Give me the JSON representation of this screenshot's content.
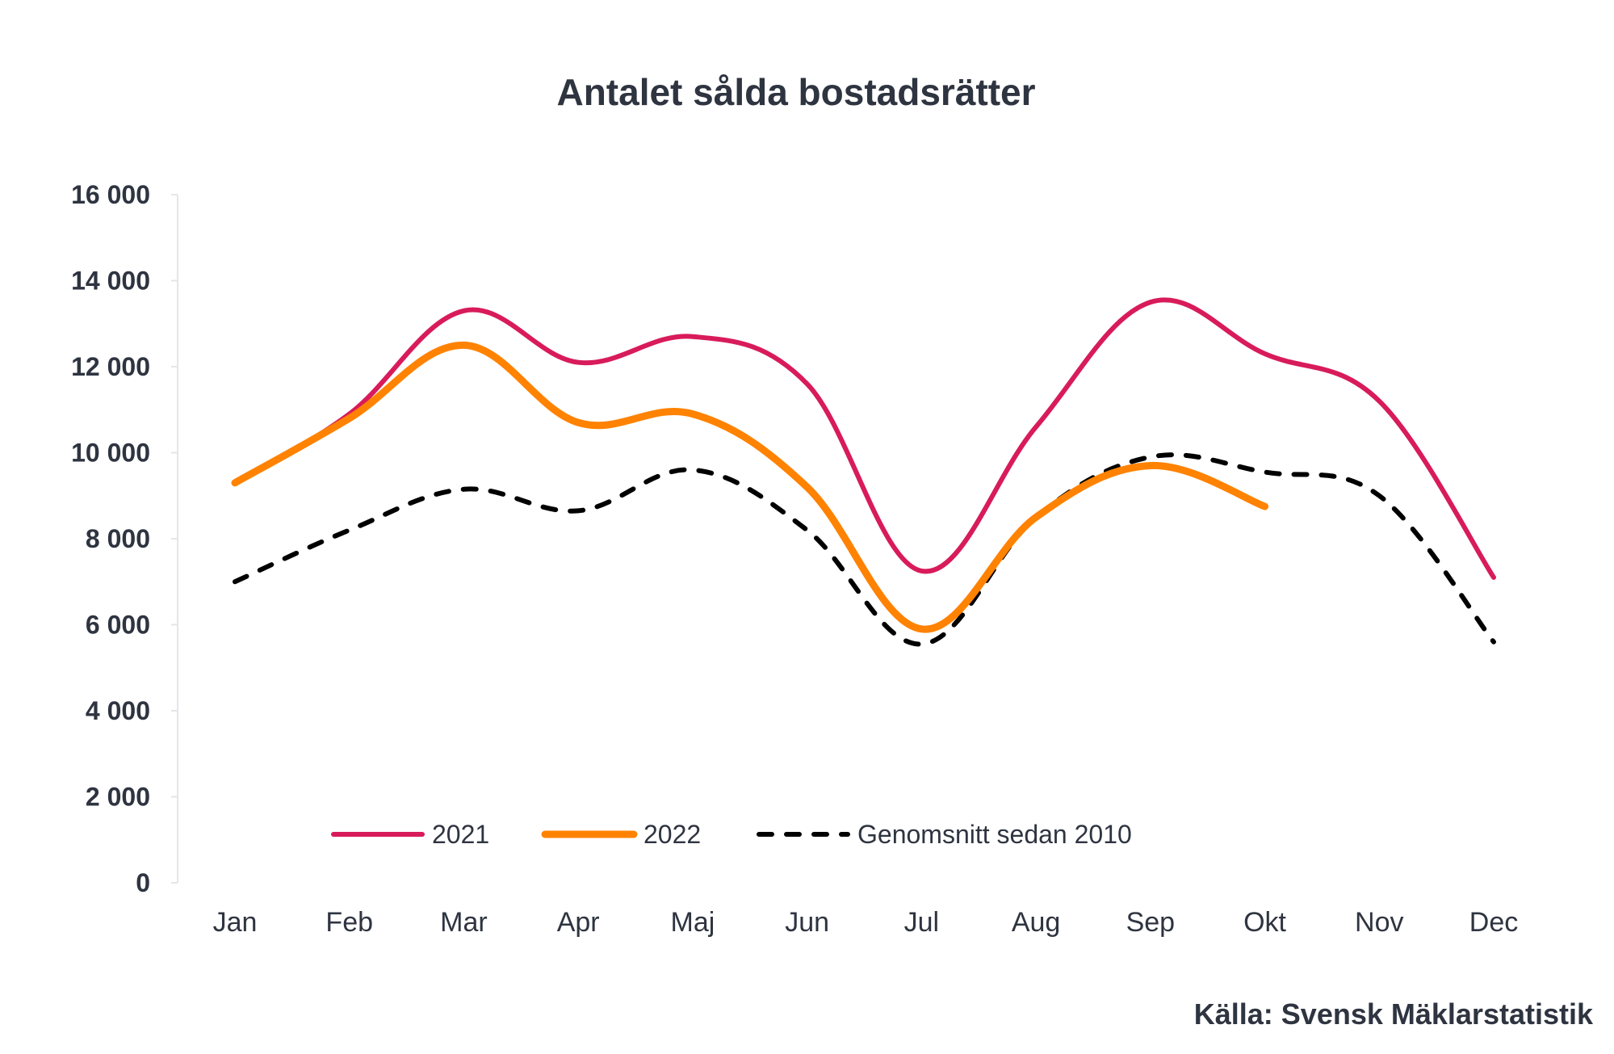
{
  "chart_data": {
    "type": "line",
    "title": "Antalet sålda bostadsrätter",
    "source": "Källa: Svensk Mäklarstatistik",
    "xlabel": "",
    "ylabel": "",
    "categories": [
      "Jan",
      "Feb",
      "Mar",
      "Apr",
      "Maj",
      "Jun",
      "Jul",
      "Aug",
      "Sep",
      "Okt",
      "Nov",
      "Dec"
    ],
    "ylim": [
      0,
      16000
    ],
    "yticks": [
      0,
      2000,
      4000,
      6000,
      8000,
      10000,
      12000,
      14000,
      16000
    ],
    "ytick_labels": [
      "0",
      "2 000",
      "4 000",
      "6 000",
      "8 000",
      "10 000",
      "12 000",
      "14 000",
      "16 000"
    ],
    "grid": false,
    "smooth": true,
    "legend_placement": "bottom-inside",
    "series": [
      {
        "name": "2021",
        "color": "#d81b5a",
        "dash": "solid",
        "values": [
          9300,
          10900,
          13300,
          12100,
          12700,
          11600,
          7250,
          10600,
          13500,
          12300,
          11200,
          7100
        ]
      },
      {
        "name": "2022",
        "color": "#ff8200",
        "dash": "solid",
        "values": [
          9300,
          10800,
          12500,
          10700,
          10900,
          9200,
          5900,
          8500,
          9700,
          8750,
          null,
          null
        ]
      },
      {
        "name": "Genomsnitt sedan 2010",
        "color": "#000000",
        "dash": "dashed",
        "values": [
          7000,
          8200,
          9150,
          8650,
          9600,
          8200,
          5550,
          8500,
          9900,
          9550,
          9000,
          5600
        ]
      }
    ]
  }
}
